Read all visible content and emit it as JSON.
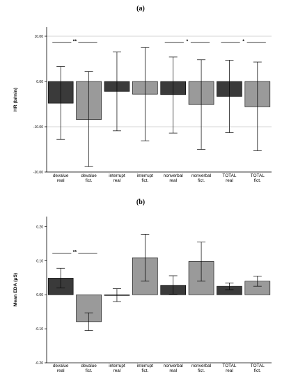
{
  "chart_data": [
    {
      "type": "bar",
      "panel_label": "(a)",
      "title": "",
      "xlabel": "",
      "ylabel": "HR (b/min)",
      "ylim": [
        -20,
        12
      ],
      "yticks": [
        10,
        0,
        -10,
        -20
      ],
      "ytick_labels": [
        "10.00",
        "0.00",
        "-10.00",
        "-20.00"
      ],
      "grid": "horizontal",
      "categories": [
        [
          "devalue",
          "real"
        ],
        [
          "devalue",
          "fict."
        ],
        [
          "interrupt",
          "real"
        ],
        [
          "interrupt",
          "fict."
        ],
        [
          "nonverbal",
          "real"
        ],
        [
          "nonverbal",
          "fict."
        ],
        [
          "TOTAL",
          "real"
        ],
        [
          "TOTAL",
          "fict."
        ]
      ],
      "values": [
        -4.8,
        -8.4,
        -2.2,
        -2.8,
        -2.9,
        -5.1,
        -3.3,
        -5.6
      ],
      "error_low": [
        -12.8,
        -18.8,
        -10.9,
        -13.1,
        -11.4,
        -15.0,
        -11.3,
        -15.3
      ],
      "error_high": [
        3.3,
        2.2,
        6.5,
        7.5,
        5.4,
        4.8,
        4.7,
        4.3
      ],
      "bar_colors": [
        "#3a3a3a",
        "#9a9a9a",
        "#3a3a3a",
        "#9a9a9a",
        "#3a3a3a",
        "#9a9a9a",
        "#3a3a3a",
        "#9a9a9a"
      ],
      "significance": [
        {
          "from": 0,
          "to": 1,
          "y": 8.6,
          "label": "**"
        },
        {
          "from": 4,
          "to": 5,
          "y": 8.6,
          "label": "*"
        },
        {
          "from": 6,
          "to": 7,
          "y": 8.6,
          "label": "*"
        }
      ]
    },
    {
      "type": "bar",
      "panel_label": "(b)",
      "title": "",
      "xlabel": "",
      "ylabel": "Mean EDA (µS)",
      "ylim": [
        -0.2,
        0.23
      ],
      "yticks": [
        0.2,
        0.1,
        0.0,
        -0.1,
        -0.2
      ],
      "ytick_labels": [
        "0.20",
        "0.10",
        "0.00",
        "-0.10",
        "-0.20"
      ],
      "grid": "none",
      "categories": [
        [
          "devalue",
          "real"
        ],
        [
          "devalue",
          "fict."
        ],
        [
          "interrupt",
          "real"
        ],
        [
          "interrupt",
          "fict."
        ],
        [
          "nonverbal",
          "real"
        ],
        [
          "nonverbal",
          "fict."
        ],
        [
          "TOTAL",
          "real"
        ],
        [
          "TOTAL",
          "fict."
        ]
      ],
      "values": [
        0.049,
        -0.079,
        -0.002,
        0.109,
        0.028,
        0.098,
        0.025,
        0.04
      ],
      "error_low": [
        0.02,
        -0.105,
        -0.02,
        0.04,
        0.002,
        0.04,
        0.015,
        0.025
      ],
      "error_high": [
        0.078,
        -0.053,
        0.018,
        0.178,
        0.056,
        0.155,
        0.035,
        0.055
      ],
      "bar_colors": [
        "#3a3a3a",
        "#9a9a9a",
        "#3a3a3a",
        "#9a9a9a",
        "#3a3a3a",
        "#9a9a9a",
        "#3a3a3a",
        "#9a9a9a"
      ],
      "significance": [
        {
          "from": 0,
          "to": 1,
          "y": 0.122,
          "label": "**"
        }
      ]
    }
  ]
}
